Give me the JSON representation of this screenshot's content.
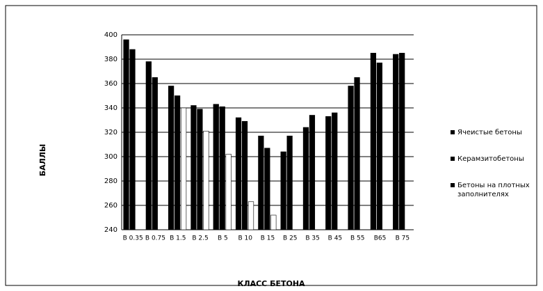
{
  "chart_data": {
    "type": "bar",
    "ylabel": "БАЛЛЫ",
    "xlabel": "КЛАСС БЕТОНА",
    "categories": [
      "В 0.35",
      "В 0.75",
      "В 1.5",
      "В 2.5",
      "В 5",
      "В 10",
      "В 15",
      "В 25",
      "В 35",
      "В 45",
      "В 55",
      "В65",
      "В 75"
    ],
    "series": [
      {
        "name": "Ячеистые бетоны",
        "color": "#000000",
        "values": [
          396,
          378,
          358,
          342,
          343,
          332,
          317,
          304,
          324,
          333,
          358,
          385,
          384
        ]
      },
      {
        "name": "Керамзитобетоны",
        "color": "#000000",
        "values": [
          388,
          365,
          350,
          339,
          341,
          329,
          307,
          317,
          334,
          336,
          365,
          377,
          385
        ]
      },
      {
        "name": "Бетоны на плотных заполнителях",
        "color": "#ffffff",
        "values": [
          null,
          null,
          340,
          321,
          302,
          263,
          252,
          null,
          null,
          null,
          null,
          null,
          null
        ]
      }
    ],
    "ylim": [
      240,
      400
    ],
    "yticks": [
      240,
      260,
      280,
      300,
      320,
      340,
      360,
      380,
      400
    ],
    "grid": true
  }
}
